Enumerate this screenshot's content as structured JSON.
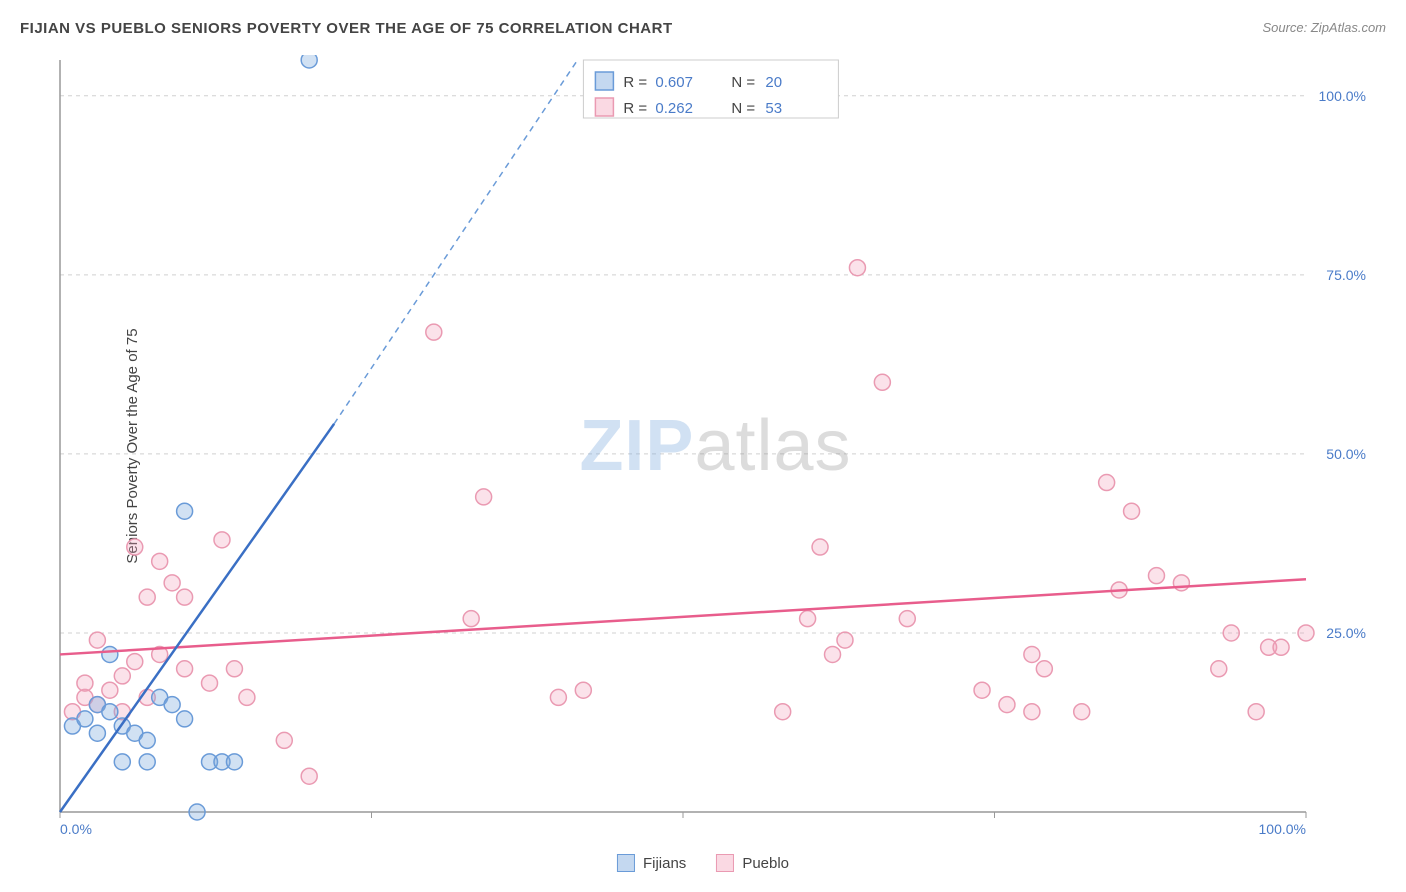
{
  "title": "FIJIAN VS PUEBLO SENIORS POVERTY OVER THE AGE OF 75 CORRELATION CHART",
  "source": "Source: ZipAtlas.com",
  "y_axis_label": "Seniors Poverty Over the Age of 75",
  "watermark_zip": "ZIP",
  "watermark_atlas": "atlas",
  "chart": {
    "type": "scatter",
    "xlim": [
      0,
      100
    ],
    "ylim": [
      0,
      105
    ],
    "x_ticks": [
      0,
      25,
      50,
      75,
      100
    ],
    "y_ticks": [
      25,
      50,
      75,
      100
    ],
    "x_tick_labels": [
      "0.0%",
      "",
      "",
      "",
      "100.0%"
    ],
    "y_tick_labels": [
      "25.0%",
      "50.0%",
      "75.0%",
      "100.0%"
    ],
    "grid_color": "#d0d0d0",
    "axis_color": "#999999",
    "background_color": "#ffffff",
    "point_radius": 8,
    "series": [
      {
        "name": "Fijians",
        "color_fill": "rgba(124,169,221,0.35)",
        "color_stroke": "#6a9bd8",
        "points": [
          [
            1,
            12
          ],
          [
            2,
            13
          ],
          [
            3,
            11
          ],
          [
            3,
            15
          ],
          [
            4,
            14
          ],
          [
            4,
            22
          ],
          [
            5,
            12
          ],
          [
            6,
            11
          ],
          [
            7,
            10
          ],
          [
            8,
            16
          ],
          [
            9,
            15
          ],
          [
            10,
            13
          ],
          [
            5,
            7
          ],
          [
            7,
            7
          ],
          [
            12,
            7
          ],
          [
            13,
            7
          ],
          [
            14,
            7
          ],
          [
            11,
            0
          ],
          [
            10,
            42
          ],
          [
            20,
            105
          ]
        ],
        "trend": {
          "slope": 2.6,
          "intercept": -3,
          "solid_until_x": 22,
          "dash_until_y": 105
        }
      },
      {
        "name": "Pueblo",
        "color_fill": "rgba(242,160,186,0.3)",
        "color_stroke": "#ea9ab2",
        "points": [
          [
            1,
            14
          ],
          [
            2,
            16
          ],
          [
            2,
            18
          ],
          [
            3,
            24
          ],
          [
            3,
            15
          ],
          [
            4,
            17
          ],
          [
            5,
            19
          ],
          [
            5,
            14
          ],
          [
            6,
            21
          ],
          [
            6,
            37
          ],
          [
            7,
            16
          ],
          [
            7,
            30
          ],
          [
            8,
            22
          ],
          [
            8,
            35
          ],
          [
            9,
            32
          ],
          [
            10,
            20
          ],
          [
            10,
            30
          ],
          [
            12,
            18
          ],
          [
            13,
            38
          ],
          [
            14,
            20
          ],
          [
            15,
            16
          ],
          [
            18,
            10
          ],
          [
            20,
            5
          ],
          [
            30,
            67
          ],
          [
            33,
            27
          ],
          [
            34,
            44
          ],
          [
            40,
            16
          ],
          [
            42,
            17
          ],
          [
            58,
            14
          ],
          [
            60,
            27
          ],
          [
            61,
            37
          ],
          [
            62,
            22
          ],
          [
            63,
            24
          ],
          [
            64,
            76
          ],
          [
            66,
            60
          ],
          [
            68,
            27
          ],
          [
            74,
            17
          ],
          [
            76,
            15
          ],
          [
            78,
            22
          ],
          [
            78,
            14
          ],
          [
            79,
            20
          ],
          [
            82,
            14
          ],
          [
            84,
            46
          ],
          [
            85,
            31
          ],
          [
            86,
            42
          ],
          [
            88,
            33
          ],
          [
            90,
            32
          ],
          [
            93,
            20
          ],
          [
            94,
            25
          ],
          [
            96,
            14
          ],
          [
            97,
            23
          ],
          [
            98,
            23
          ],
          [
            100,
            25
          ]
        ],
        "trend": {
          "slope": 0.105,
          "intercept": 22
        }
      }
    ]
  },
  "stats_legend": {
    "rows": [
      {
        "swatch": "blue",
        "r_label": "R =",
        "r_value": "0.607",
        "n_label": "N =",
        "n_value": "20"
      },
      {
        "swatch": "pink",
        "r_label": "R =",
        "r_value": "0.262",
        "n_label": "N =",
        "n_value": "53"
      }
    ]
  },
  "bottom_legend": {
    "items": [
      {
        "swatch": "blue",
        "label": "Fijians"
      },
      {
        "swatch": "pink",
        "label": "Pueblo"
      }
    ]
  }
}
